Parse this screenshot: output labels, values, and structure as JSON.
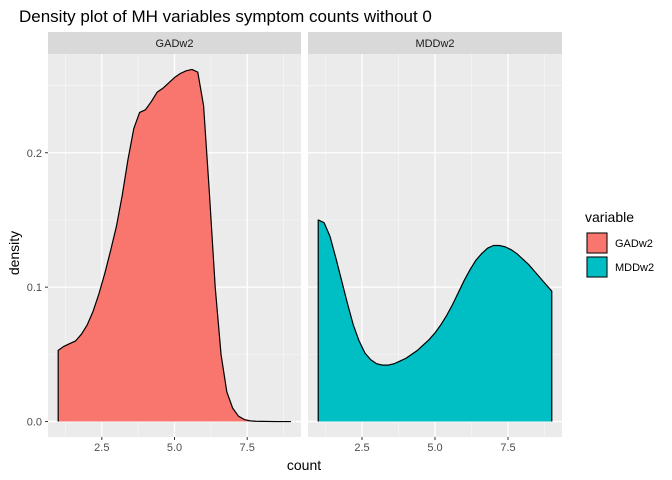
{
  "chart_data": {
    "type": "area",
    "title": "Density plot of MH variables symptom counts without 0",
    "xlabel": "count",
    "ylabel": "density",
    "xlim": [
      0.65,
      9.35
    ],
    "ylim": [
      -0.0115,
      0.2735
    ],
    "x_ticks": [
      2.5,
      5.0,
      7.5
    ],
    "x_tick_labels": [
      "2.5",
      "5.0",
      "7.5"
    ],
    "y_ticks": [
      0.0,
      0.1,
      0.2
    ],
    "y_tick_labels": [
      "0.0",
      "0.1",
      "0.2"
    ],
    "grid": true,
    "facets": [
      "GADw2",
      "MDDw2"
    ],
    "legend": {
      "title": "variable",
      "position": "right",
      "entries": [
        "GADw2",
        "MDDw2"
      ]
    },
    "series": [
      {
        "name": "GADw2",
        "facet": "GADw2",
        "color": "#F8766D",
        "x": [
          1.0,
          1.2,
          1.4,
          1.6,
          1.8,
          2.0,
          2.2,
          2.4,
          2.6,
          2.8,
          3.0,
          3.2,
          3.4,
          3.6,
          3.8,
          4.0,
          4.2,
          4.4,
          4.6,
          4.8,
          5.0,
          5.2,
          5.4,
          5.6,
          5.8,
          6.0,
          6.2,
          6.4,
          6.6,
          6.8,
          7.0,
          7.2,
          7.4,
          7.6,
          7.8,
          8.0,
          8.5,
          9.0
        ],
        "y": [
          0.053,
          0.056,
          0.058,
          0.06,
          0.065,
          0.072,
          0.082,
          0.095,
          0.11,
          0.127,
          0.145,
          0.168,
          0.195,
          0.218,
          0.23,
          0.232,
          0.238,
          0.245,
          0.248,
          0.252,
          0.256,
          0.259,
          0.261,
          0.262,
          0.26,
          0.235,
          0.17,
          0.1,
          0.05,
          0.022,
          0.01,
          0.004,
          0.0015,
          0.0005,
          0.0002,
          0.0001,
          0.0,
          0.0
        ]
      },
      {
        "name": "MDDw2",
        "facet": "MDDw2",
        "color": "#00BFC4",
        "x": [
          1.0,
          1.2,
          1.4,
          1.6,
          1.8,
          2.0,
          2.2,
          2.4,
          2.6,
          2.8,
          3.0,
          3.2,
          3.4,
          3.6,
          3.8,
          4.0,
          4.2,
          4.4,
          4.6,
          4.8,
          5.0,
          5.2,
          5.4,
          5.6,
          5.8,
          6.0,
          6.2,
          6.4,
          6.6,
          6.8,
          7.0,
          7.2,
          7.4,
          7.6,
          7.8,
          8.0,
          8.2,
          8.4,
          8.6,
          8.8,
          9.0
        ],
        "y": [
          0.15,
          0.148,
          0.138,
          0.122,
          0.105,
          0.088,
          0.072,
          0.06,
          0.051,
          0.046,
          0.043,
          0.042,
          0.042,
          0.043,
          0.045,
          0.047,
          0.05,
          0.053,
          0.057,
          0.061,
          0.066,
          0.072,
          0.079,
          0.087,
          0.096,
          0.105,
          0.113,
          0.12,
          0.125,
          0.129,
          0.131,
          0.131,
          0.13,
          0.128,
          0.125,
          0.121,
          0.117,
          0.112,
          0.107,
          0.102,
          0.097
        ]
      }
    ]
  }
}
